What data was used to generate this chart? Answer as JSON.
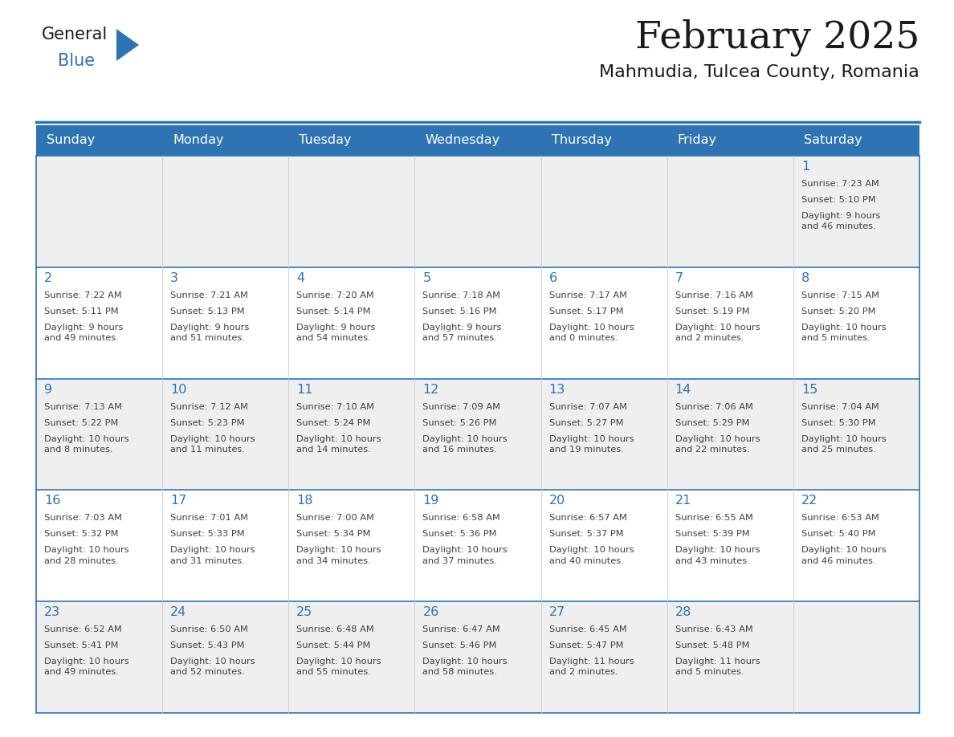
{
  "title": "February 2025",
  "subtitle": "Mahmudia, Tulcea County, Romania",
  "header_bg": "#2E74B5",
  "header_text_color": "#FFFFFF",
  "cell_bg_light": "#EFEFEF",
  "cell_bg_white": "#FFFFFF",
  "day_number_color": "#2E74B5",
  "info_text_color": "#404040",
  "border_color": "#2E74B5",
  "days_of_week": [
    "Sunday",
    "Monday",
    "Tuesday",
    "Wednesday",
    "Thursday",
    "Friday",
    "Saturday"
  ],
  "calendar": [
    [
      {
        "day": "",
        "sunrise": "",
        "sunset": "",
        "daylight": ""
      },
      {
        "day": "",
        "sunrise": "",
        "sunset": "",
        "daylight": ""
      },
      {
        "day": "",
        "sunrise": "",
        "sunset": "",
        "daylight": ""
      },
      {
        "day": "",
        "sunrise": "",
        "sunset": "",
        "daylight": ""
      },
      {
        "day": "",
        "sunrise": "",
        "sunset": "",
        "daylight": ""
      },
      {
        "day": "",
        "sunrise": "",
        "sunset": "",
        "daylight": ""
      },
      {
        "day": "1",
        "sunrise": "Sunrise: 7:23 AM",
        "sunset": "Sunset: 5:10 PM",
        "daylight": "Daylight: 9 hours\nand 46 minutes."
      }
    ],
    [
      {
        "day": "2",
        "sunrise": "Sunrise: 7:22 AM",
        "sunset": "Sunset: 5:11 PM",
        "daylight": "Daylight: 9 hours\nand 49 minutes."
      },
      {
        "day": "3",
        "sunrise": "Sunrise: 7:21 AM",
        "sunset": "Sunset: 5:13 PM",
        "daylight": "Daylight: 9 hours\nand 51 minutes."
      },
      {
        "day": "4",
        "sunrise": "Sunrise: 7:20 AM",
        "sunset": "Sunset: 5:14 PM",
        "daylight": "Daylight: 9 hours\nand 54 minutes."
      },
      {
        "day": "5",
        "sunrise": "Sunrise: 7:18 AM",
        "sunset": "Sunset: 5:16 PM",
        "daylight": "Daylight: 9 hours\nand 57 minutes."
      },
      {
        "day": "6",
        "sunrise": "Sunrise: 7:17 AM",
        "sunset": "Sunset: 5:17 PM",
        "daylight": "Daylight: 10 hours\nand 0 minutes."
      },
      {
        "day": "7",
        "sunrise": "Sunrise: 7:16 AM",
        "sunset": "Sunset: 5:19 PM",
        "daylight": "Daylight: 10 hours\nand 2 minutes."
      },
      {
        "day": "8",
        "sunrise": "Sunrise: 7:15 AM",
        "sunset": "Sunset: 5:20 PM",
        "daylight": "Daylight: 10 hours\nand 5 minutes."
      }
    ],
    [
      {
        "day": "9",
        "sunrise": "Sunrise: 7:13 AM",
        "sunset": "Sunset: 5:22 PM",
        "daylight": "Daylight: 10 hours\nand 8 minutes."
      },
      {
        "day": "10",
        "sunrise": "Sunrise: 7:12 AM",
        "sunset": "Sunset: 5:23 PM",
        "daylight": "Daylight: 10 hours\nand 11 minutes."
      },
      {
        "day": "11",
        "sunrise": "Sunrise: 7:10 AM",
        "sunset": "Sunset: 5:24 PM",
        "daylight": "Daylight: 10 hours\nand 14 minutes."
      },
      {
        "day": "12",
        "sunrise": "Sunrise: 7:09 AM",
        "sunset": "Sunset: 5:26 PM",
        "daylight": "Daylight: 10 hours\nand 16 minutes."
      },
      {
        "day": "13",
        "sunrise": "Sunrise: 7:07 AM",
        "sunset": "Sunset: 5:27 PM",
        "daylight": "Daylight: 10 hours\nand 19 minutes."
      },
      {
        "day": "14",
        "sunrise": "Sunrise: 7:06 AM",
        "sunset": "Sunset: 5:29 PM",
        "daylight": "Daylight: 10 hours\nand 22 minutes."
      },
      {
        "day": "15",
        "sunrise": "Sunrise: 7:04 AM",
        "sunset": "Sunset: 5:30 PM",
        "daylight": "Daylight: 10 hours\nand 25 minutes."
      }
    ],
    [
      {
        "day": "16",
        "sunrise": "Sunrise: 7:03 AM",
        "sunset": "Sunset: 5:32 PM",
        "daylight": "Daylight: 10 hours\nand 28 minutes."
      },
      {
        "day": "17",
        "sunrise": "Sunrise: 7:01 AM",
        "sunset": "Sunset: 5:33 PM",
        "daylight": "Daylight: 10 hours\nand 31 minutes."
      },
      {
        "day": "18",
        "sunrise": "Sunrise: 7:00 AM",
        "sunset": "Sunset: 5:34 PM",
        "daylight": "Daylight: 10 hours\nand 34 minutes."
      },
      {
        "day": "19",
        "sunrise": "Sunrise: 6:58 AM",
        "sunset": "Sunset: 5:36 PM",
        "daylight": "Daylight: 10 hours\nand 37 minutes."
      },
      {
        "day": "20",
        "sunrise": "Sunrise: 6:57 AM",
        "sunset": "Sunset: 5:37 PM",
        "daylight": "Daylight: 10 hours\nand 40 minutes."
      },
      {
        "day": "21",
        "sunrise": "Sunrise: 6:55 AM",
        "sunset": "Sunset: 5:39 PM",
        "daylight": "Daylight: 10 hours\nand 43 minutes."
      },
      {
        "day": "22",
        "sunrise": "Sunrise: 6:53 AM",
        "sunset": "Sunset: 5:40 PM",
        "daylight": "Daylight: 10 hours\nand 46 minutes."
      }
    ],
    [
      {
        "day": "23",
        "sunrise": "Sunrise: 6:52 AM",
        "sunset": "Sunset: 5:41 PM",
        "daylight": "Daylight: 10 hours\nand 49 minutes."
      },
      {
        "day": "24",
        "sunrise": "Sunrise: 6:50 AM",
        "sunset": "Sunset: 5:43 PM",
        "daylight": "Daylight: 10 hours\nand 52 minutes."
      },
      {
        "day": "25",
        "sunrise": "Sunrise: 6:48 AM",
        "sunset": "Sunset: 5:44 PM",
        "daylight": "Daylight: 10 hours\nand 55 minutes."
      },
      {
        "day": "26",
        "sunrise": "Sunrise: 6:47 AM",
        "sunset": "Sunset: 5:46 PM",
        "daylight": "Daylight: 10 hours\nand 58 minutes."
      },
      {
        "day": "27",
        "sunrise": "Sunrise: 6:45 AM",
        "sunset": "Sunset: 5:47 PM",
        "daylight": "Daylight: 11 hours\nand 2 minutes."
      },
      {
        "day": "28",
        "sunrise": "Sunrise: 6:43 AM",
        "sunset": "Sunset: 5:48 PM",
        "daylight": "Daylight: 11 hours\nand 5 minutes."
      },
      {
        "day": "",
        "sunrise": "",
        "sunset": "",
        "daylight": ""
      }
    ]
  ]
}
